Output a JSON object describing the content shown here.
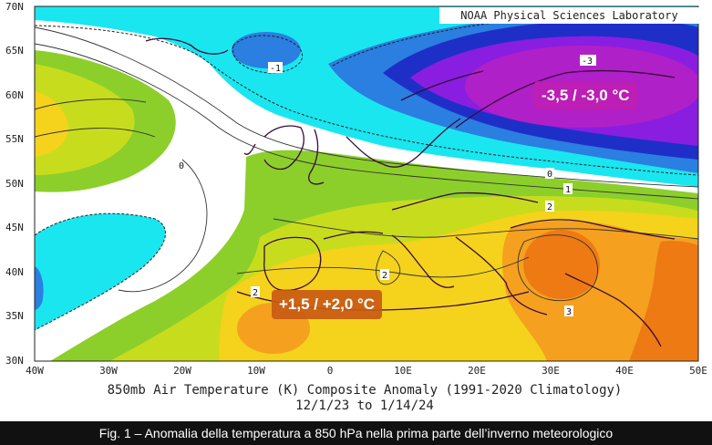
{
  "map": {
    "credit": "NOAA Physical Sciences Laboratory",
    "title_line1": "850mb Air Temperature (K) Composite Anomaly (1991-2020 Climatology)",
    "title_line2": "12/1/23  to 1/14/24",
    "lat_labels": [
      "70N",
      "65N",
      "60N",
      "55N",
      "50N",
      "45N",
      "40N",
      "35N",
      "30N"
    ],
    "lon_labels": [
      "40W",
      "30W",
      "20W",
      "10W",
      "0",
      "10E",
      "20E",
      "30E",
      "40E",
      "50E"
    ],
    "contour_labels": {
      "neg1": "-1",
      "neg3": "-3",
      "zero_west": "0",
      "zero_east": "0",
      "one": "1",
      "two_east": "2",
      "two_italy": "2",
      "two_iberia": "2",
      "three": "3"
    },
    "annotations": {
      "cold": "-3,5 / -3,0 °C",
      "warm": "+1,5 / +2,0 °C"
    },
    "colors": {
      "cyan": "#1ae6f0",
      "blue": "#2a7fe0",
      "deep_blue": "#1e2fc8",
      "purple": "#8a1ee0",
      "magenta": "#b020c8",
      "green": "#8ccf2a",
      "yellow_green": "#c8dc1e",
      "yellow": "#f5d21c",
      "orange": "#f5a01e",
      "dark_orange": "#ee7a14"
    }
  },
  "caption": "Fig. 1 – Anomalia della temperatura a 850 hPa nella prima parte dell’inverno meteorologico"
}
